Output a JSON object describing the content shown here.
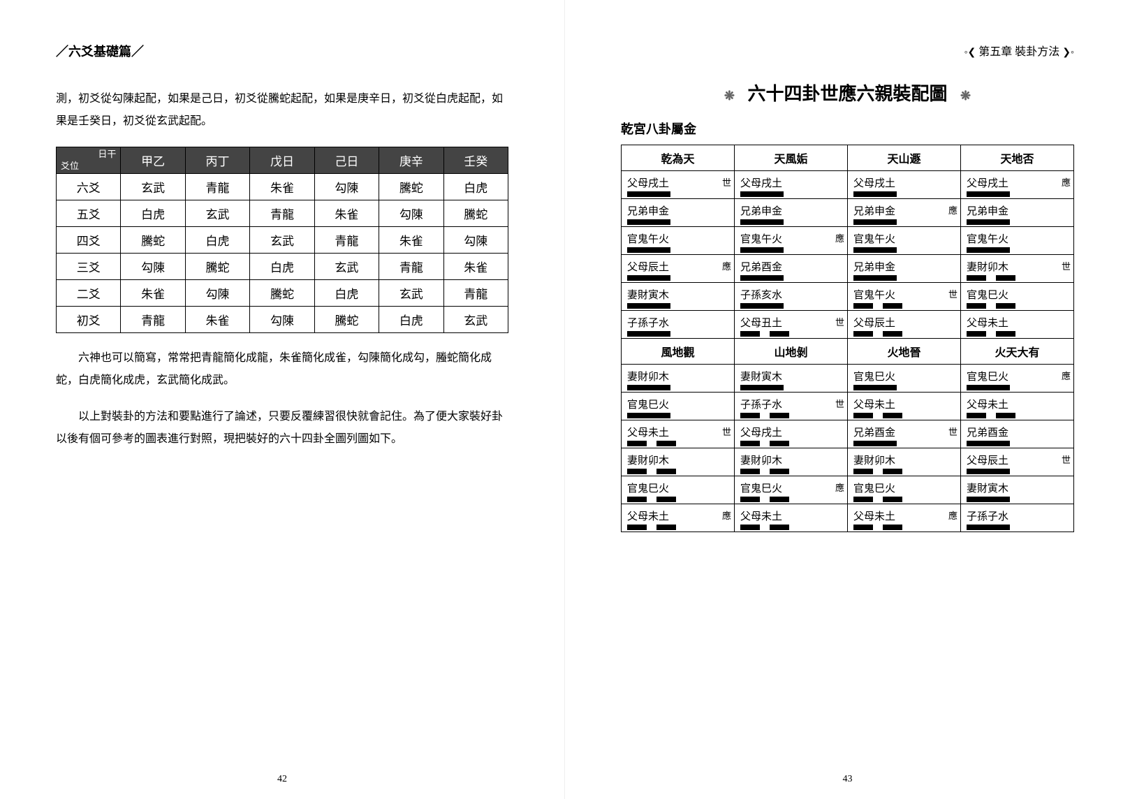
{
  "left": {
    "header": "／六爻基礎篇／",
    "para1": "測，初爻從勾陳起配，如果是己日，初爻從騰蛇起配，如果是庚辛日，初爻從白虎起配，如果是壬癸日，初爻從玄武起配。",
    "table": {
      "corner_top": "日干",
      "corner_bot": "爻位",
      "cols": [
        "甲乙",
        "丙丁",
        "戊日",
        "己日",
        "庚辛",
        "壬癸"
      ],
      "rows": [
        {
          "h": "六爻",
          "c": [
            "玄武",
            "青龍",
            "朱雀",
            "勾陳",
            "騰蛇",
            "白虎"
          ]
        },
        {
          "h": "五爻",
          "c": [
            "白虎",
            "玄武",
            "青龍",
            "朱雀",
            "勾陳",
            "騰蛇"
          ]
        },
        {
          "h": "四爻",
          "c": [
            "騰蛇",
            "白虎",
            "玄武",
            "青龍",
            "朱雀",
            "勾陳"
          ]
        },
        {
          "h": "三爻",
          "c": [
            "勾陳",
            "騰蛇",
            "白虎",
            "玄武",
            "青龍",
            "朱雀"
          ]
        },
        {
          "h": "二爻",
          "c": [
            "朱雀",
            "勾陳",
            "騰蛇",
            "白虎",
            "玄武",
            "青龍"
          ]
        },
        {
          "h": "初爻",
          "c": [
            "青龍",
            "朱雀",
            "勾陳",
            "騰蛇",
            "白虎",
            "玄武"
          ]
        }
      ]
    },
    "para2": "六神也可以簡寫，常常把青龍簡化成龍，朱雀簡化成雀，勾陳簡化成勾，螣蛇簡化成蛇，白虎簡化成虎，玄武簡化成武。",
    "para3": "以上對裝卦的方法和要點進行了論述，只要反覆練習很快就會記住。為了便大家裝好卦以後有個可參考的圖表進行對照，現把裝好的六十四卦全圖列圖如下。",
    "pagenum": "42"
  },
  "right": {
    "header": "第五章 裝卦方法",
    "title": "六十四卦世應六親裝配圖",
    "palace": "乾宮八卦屬金",
    "guaNames1": [
      "乾為天",
      "天風姤",
      "天山遯",
      "天地否"
    ],
    "guaNames2": [
      "風地觀",
      "山地剝",
      "火地晉",
      "火天大有"
    ],
    "guas1": [
      [
        {
          "t": "父母戌土",
          "m": "世",
          "y": 1
        },
        {
          "t": "兄弟申金",
          "m": "",
          "y": 1
        },
        {
          "t": "官鬼午火",
          "m": "",
          "y": 1
        },
        {
          "t": "父母辰土",
          "m": "應",
          "y": 1
        },
        {
          "t": "妻財寅木",
          "m": "",
          "y": 1
        },
        {
          "t": "子孫子水",
          "m": "",
          "y": 1
        }
      ],
      [
        {
          "t": "父母戌土",
          "m": "",
          "y": 1
        },
        {
          "t": "兄弟申金",
          "m": "",
          "y": 1
        },
        {
          "t": "官鬼午火",
          "m": "應",
          "y": 1
        },
        {
          "t": "兄弟酉金",
          "m": "",
          "y": 1
        },
        {
          "t": "子孫亥水",
          "m": "",
          "y": 1
        },
        {
          "t": "父母丑土",
          "m": "世",
          "y": 0
        }
      ],
      [
        {
          "t": "父母戌土",
          "m": "",
          "y": 1
        },
        {
          "t": "兄弟申金",
          "m": "應",
          "y": 1
        },
        {
          "t": "官鬼午火",
          "m": "",
          "y": 1
        },
        {
          "t": "兄弟申金",
          "m": "",
          "y": 1
        },
        {
          "t": "官鬼午火",
          "m": "世",
          "y": 0
        },
        {
          "t": "父母辰土",
          "m": "",
          "y": 0
        }
      ],
      [
        {
          "t": "父母戌土",
          "m": "應",
          "y": 1
        },
        {
          "t": "兄弟申金",
          "m": "",
          "y": 1
        },
        {
          "t": "官鬼午火",
          "m": "",
          "y": 1
        },
        {
          "t": "妻財卯木",
          "m": "世",
          "y": 0
        },
        {
          "t": "官鬼巳火",
          "m": "",
          "y": 0
        },
        {
          "t": "父母未土",
          "m": "",
          "y": 0
        }
      ]
    ],
    "guas2": [
      [
        {
          "t": "妻財卯木",
          "m": "",
          "y": 1
        },
        {
          "t": "官鬼巳火",
          "m": "",
          "y": 1
        },
        {
          "t": "父母未土",
          "m": "世",
          "y": 0
        },
        {
          "t": "妻財卯木",
          "m": "",
          "y": 0
        },
        {
          "t": "官鬼巳火",
          "m": "",
          "y": 0
        },
        {
          "t": "父母未土",
          "m": "應",
          "y": 0
        }
      ],
      [
        {
          "t": "妻財寅木",
          "m": "",
          "y": 1
        },
        {
          "t": "子孫子水",
          "m": "世",
          "y": 0
        },
        {
          "t": "父母戌土",
          "m": "",
          "y": 0
        },
        {
          "t": "妻財卯木",
          "m": "",
          "y": 0
        },
        {
          "t": "官鬼巳火",
          "m": "應",
          "y": 0
        },
        {
          "t": "父母未土",
          "m": "",
          "y": 0
        }
      ],
      [
        {
          "t": "官鬼巳火",
          "m": "",
          "y": 1
        },
        {
          "t": "父母未土",
          "m": "",
          "y": 0
        },
        {
          "t": "兄弟酉金",
          "m": "世",
          "y": 1
        },
        {
          "t": "妻財卯木",
          "m": "",
          "y": 0
        },
        {
          "t": "官鬼巳火",
          "m": "",
          "y": 0
        },
        {
          "t": "父母未土",
          "m": "應",
          "y": 0
        }
      ],
      [
        {
          "t": "官鬼巳火",
          "m": "應",
          "y": 1
        },
        {
          "t": "父母未土",
          "m": "",
          "y": 0
        },
        {
          "t": "兄弟酉金",
          "m": "",
          "y": 1
        },
        {
          "t": "父母辰土",
          "m": "世",
          "y": 1
        },
        {
          "t": "妻財寅木",
          "m": "",
          "y": 1
        },
        {
          "t": "子孫子水",
          "m": "",
          "y": 1
        }
      ]
    ],
    "pagenum": "43"
  }
}
